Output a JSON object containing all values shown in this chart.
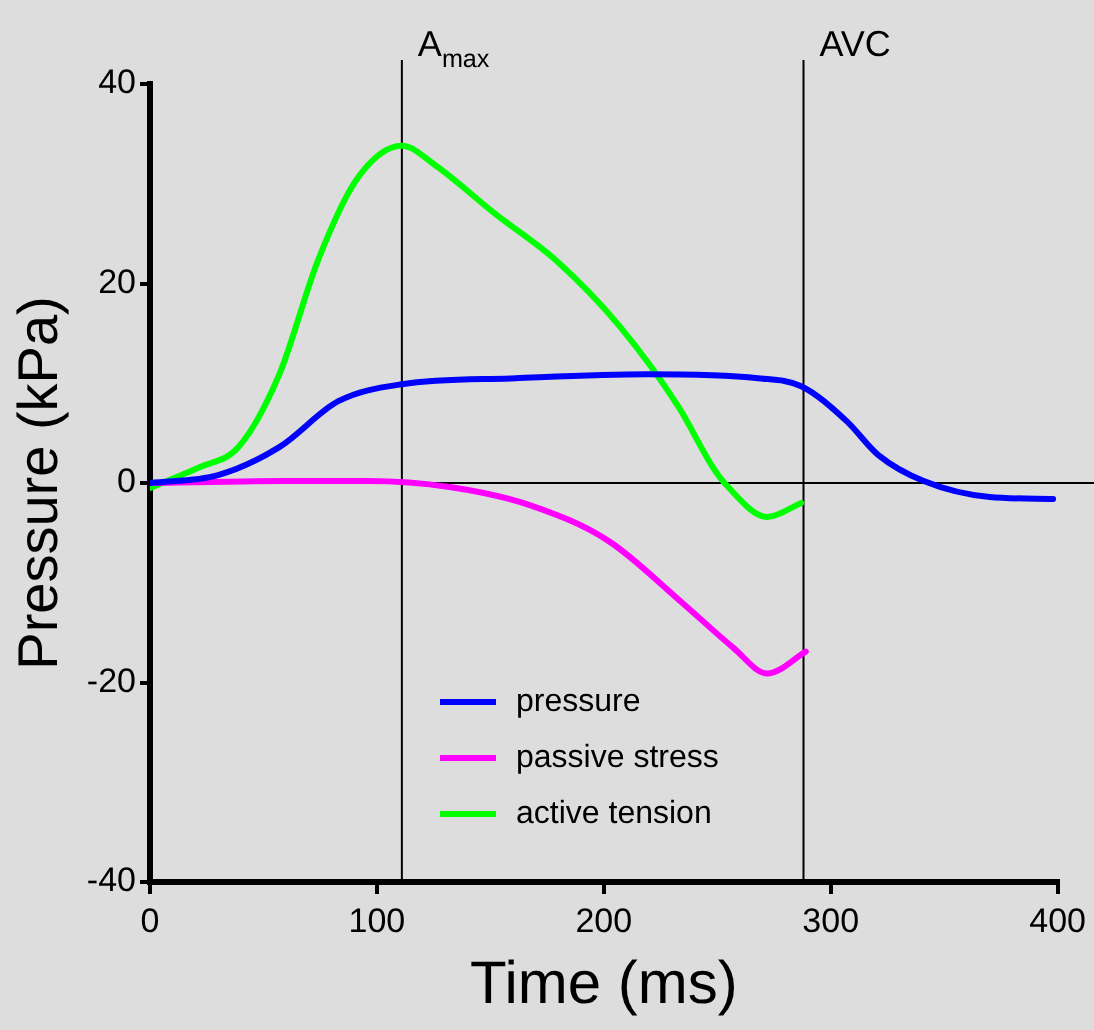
{
  "chart_data": {
    "type": "line",
    "xlabel": "Time (ms)",
    "ylabel": "Pressure (kPa)",
    "xlim": [
      0,
      400
    ],
    "xticks": [
      0,
      100,
      200,
      300,
      400
    ],
    "ylim": [
      -40,
      40
    ],
    "yticks": [
      -40,
      -20,
      0,
      20,
      40
    ],
    "grid": false,
    "legend": "bottom",
    "marker": "none",
    "line_style": "solid",
    "ref_lines": [
      {
        "axis": "x",
        "value": 111,
        "label": "A$_{max}$",
        "color": "#000000"
      },
      {
        "axis": "x",
        "value": 288,
        "label": "AVC",
        "color": "#000000"
      },
      {
        "axis": "y",
        "value": 0,
        "label": null,
        "color": "#000000"
      }
    ],
    "series": [
      {
        "name": "pressure",
        "color": "#0000ff",
        "x": [
          0,
          30,
          57,
          83,
          111,
          161,
          219,
          268,
          287,
          307,
          321,
          341,
          370,
          398
        ],
        "values": [
          0,
          0.8,
          3.6,
          8.2,
          9.9,
          10.5,
          10.9,
          10.5,
          9.7,
          6.2,
          2.8,
          0.2,
          -1.4,
          -1.6
        ]
      },
      {
        "name": "passive stress",
        "color": "#ff00ff",
        "x": [
          0,
          59,
          96,
          132,
          167,
          202,
          234,
          257,
          272,
          289
        ],
        "values": [
          0,
          0.2,
          0.2,
          -0.4,
          -2.2,
          -5.8,
          -11.9,
          -16.5,
          -19.1,
          -16.9
        ]
      },
      {
        "name": "active tension",
        "color": "#00ff00",
        "x": [
          0,
          22,
          39,
          57,
          74,
          91,
          111,
          126,
          152,
          179,
          207,
          233,
          248,
          254,
          272,
          287
        ],
        "values": [
          -0.5,
          1.6,
          3.6,
          10.9,
          22.3,
          30.4,
          33.8,
          31.8,
          27,
          22.3,
          15.7,
          7.6,
          1.6,
          -0.2,
          -3.4,
          -2
        ]
      }
    ]
  }
}
